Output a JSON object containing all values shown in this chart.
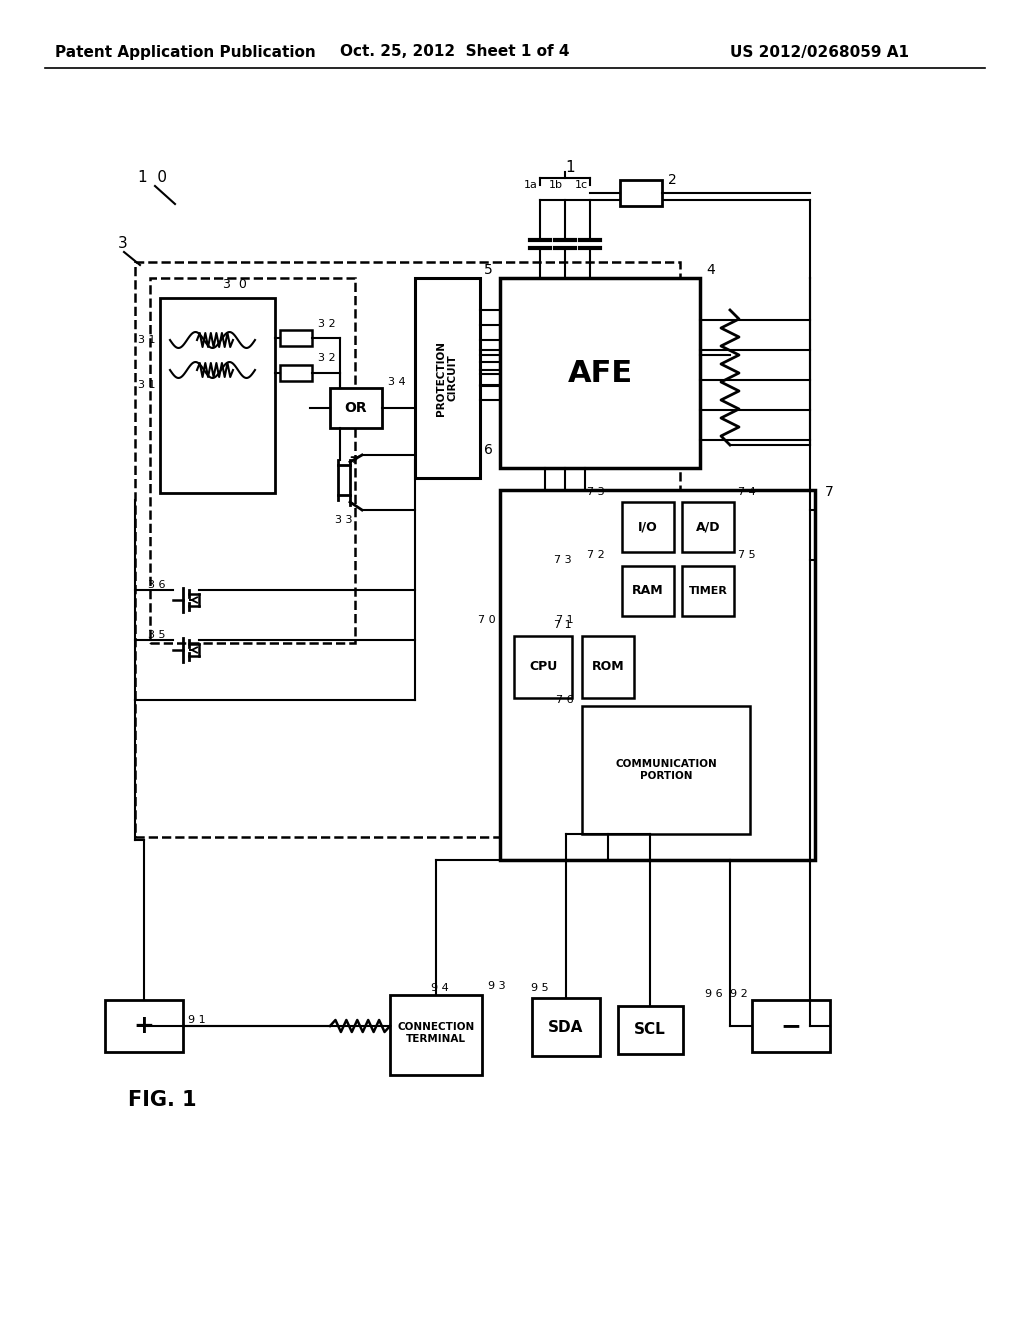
{
  "bg_color": "#ffffff",
  "header_left": "Patent Application Publication",
  "header_mid": "Oct. 25, 2012  Sheet 1 of 4",
  "header_right": "US 2012/0268059 A1",
  "fig_label": "FIG. 1"
}
